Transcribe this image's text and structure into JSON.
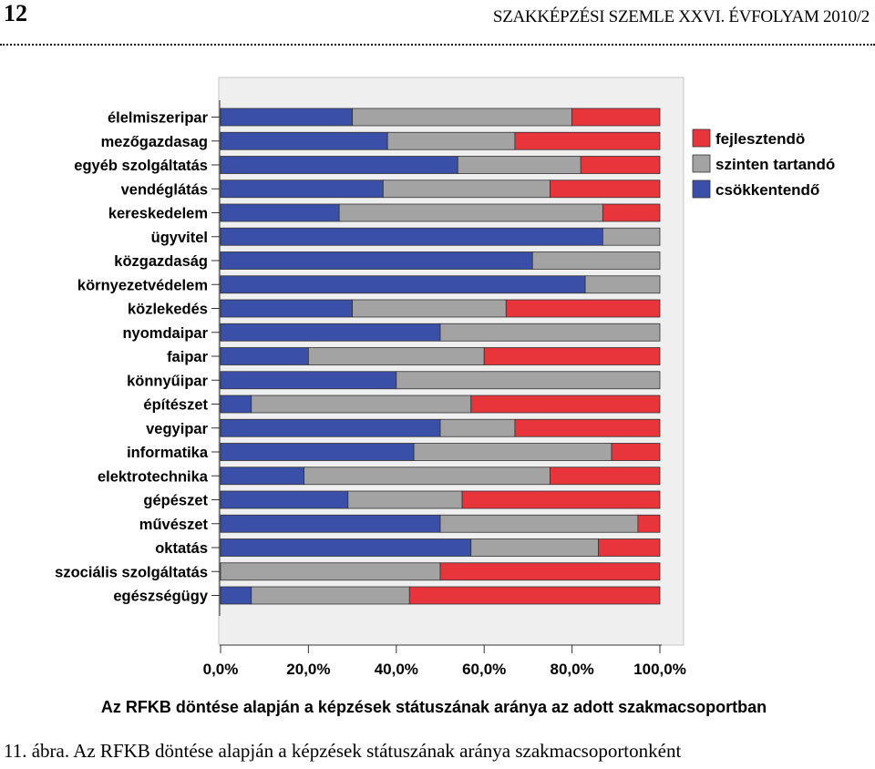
{
  "header": {
    "page_number": "12",
    "journal": "SZAKKÉPZÉSI SZEMLE XXVI. ÉVFOLYAM 2010/2"
  },
  "caption": "11. ábra. Az RFKB döntése alapján a képzések státuszának aránya szakmacsoportonként",
  "colors": {
    "fejlesztendo": "#e8343b",
    "szinten_tartando": "#a3a3a3",
    "csokkentendo": "#3a4fa8",
    "plot_bg": "#efefef"
  },
  "chart_data": {
    "type": "bar",
    "orientation": "horizontal",
    "stacked": true,
    "title": "",
    "xlabel": "Az RFKB döntése alapján a képzések státuszának aránya az adott szakmacsoportban",
    "ylabel": "",
    "xlim": [
      0,
      100
    ],
    "xticks": [
      "0,0%",
      "20,0%",
      "40,0%",
      "60,0%",
      "80,0%",
      "100,0%"
    ],
    "xtick_values": [
      0,
      20,
      40,
      60,
      80,
      100
    ],
    "legend_position": "right",
    "categories": [
      "élelmiszeripar",
      "mezőgazdasag",
      "egyéb szolgáltatás",
      "vendéglátás",
      "kereskedelem",
      "ügyvitel",
      "közgazdaság",
      "környezetvédelem",
      "közlekedés",
      "nyomdaipar",
      "faipar",
      "könnyűipar",
      "építészet",
      "vegyipar",
      "informatika",
      "elektrotechnika",
      "gépészet",
      "művészet",
      "oktatás",
      "szociális szolgáltatás",
      "egészségügy"
    ],
    "series": [
      {
        "name": "csökkentendő",
        "color": "#3a4fa8",
        "values": [
          30,
          38,
          54,
          37,
          27,
          87,
          71,
          83,
          30,
          50,
          20,
          40,
          7,
          50,
          44,
          19,
          29,
          50,
          57,
          0,
          7
        ]
      },
      {
        "name": "szinten tartandó",
        "color": "#a3a3a3",
        "values": [
          50,
          29,
          28,
          38,
          60,
          13,
          29,
          17,
          35,
          50,
          40,
          60,
          50,
          17,
          45,
          56,
          26,
          45,
          29,
          50,
          36
        ]
      },
      {
        "name": "fejlesztendö",
        "color": "#e8343b",
        "values": [
          20,
          33,
          18,
          25,
          13,
          0,
          0,
          0,
          35,
          0,
          40,
          0,
          43,
          33,
          11,
          25,
          45,
          5,
          14,
          50,
          57
        ]
      }
    ],
    "legend_order": [
      "fejlesztendö",
      "szinten tartandó",
      "csökkentendő"
    ]
  }
}
